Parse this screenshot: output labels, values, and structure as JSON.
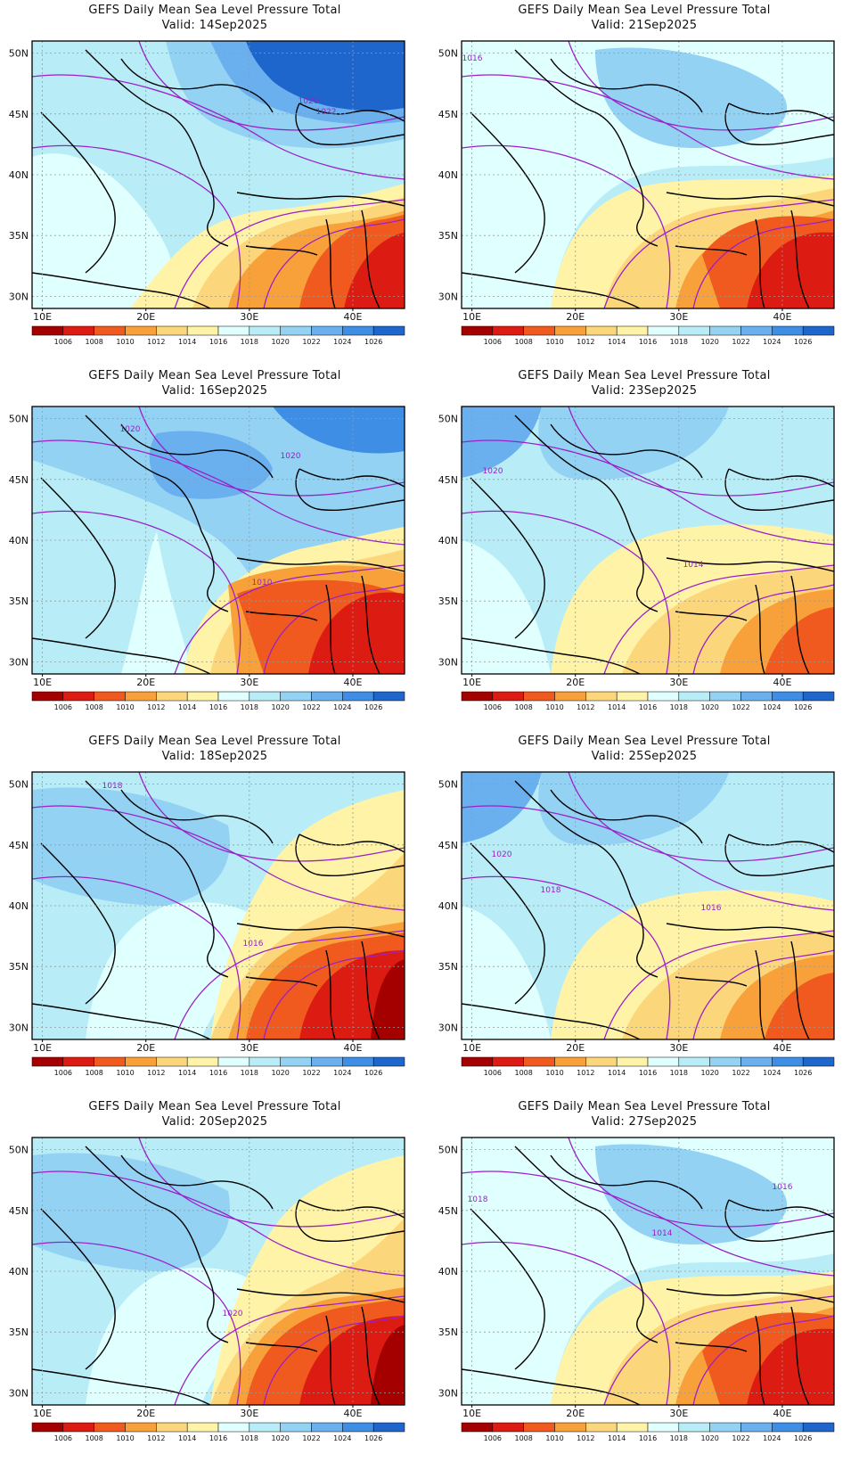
{
  "figure": {
    "title": "GEFS Daily Mean Sea Level Pressure Total"
  },
  "axes": {
    "lon_ticks": [
      "10E",
      "20E",
      "30E",
      "40E"
    ],
    "lat_ticks": [
      "50N",
      "45N",
      "40N",
      "35N",
      "30N"
    ]
  },
  "colorbar": {
    "levels": [
      "1006",
      "1008",
      "1010",
      "1012",
      "1014",
      "1016",
      "1018",
      "1020",
      "1022",
      "1024",
      "1026"
    ],
    "colors": [
      "#a50000",
      "#dc1c13",
      "#f05a1e",
      "#f8a03a",
      "#fcd67a",
      "#fff3a8",
      "#e0ffff",
      "#b8ecf7",
      "#94d2f4",
      "#6ab0ee",
      "#3f8ee6",
      "#1f66cc"
    ]
  },
  "panels": [
    {
      "valid": "Valid: 14Sep2025",
      "labels": [
        {
          "text": "1026"
        },
        {
          "text": "1022"
        }
      ],
      "theme": "highN"
    },
    {
      "valid": "Valid: 21Sep2025",
      "labels": [
        {
          "text": "1016"
        }
      ],
      "theme": "mild"
    },
    {
      "valid": "Valid: 16Sep2025",
      "labels": [
        {
          "text": "1020"
        },
        {
          "text": "1020"
        },
        {
          "text": "1010"
        }
      ],
      "theme": "highNE"
    },
    {
      "valid": "Valid: 23Sep2025",
      "labels": [
        {
          "text": "1020"
        },
        {
          "text": "1014"
        }
      ],
      "theme": "mildW"
    },
    {
      "valid": "Valid: 18Sep2025",
      "labels": [
        {
          "text": "1018"
        },
        {
          "text": "1016"
        }
      ],
      "theme": "lowE"
    },
    {
      "valid": "Valid: 25Sep2025",
      "labels": [
        {
          "text": "1020"
        },
        {
          "text": "1018"
        },
        {
          "text": "1016"
        }
      ],
      "theme": "mildW"
    },
    {
      "valid": "Valid: 20Sep2025",
      "labels": [
        {
          "text": "1020"
        }
      ],
      "theme": "lowE"
    },
    {
      "valid": "Valid: 27Sep2025",
      "labels": [
        {
          "text": "1018"
        },
        {
          "text": "1016"
        },
        {
          "text": "1014"
        }
      ],
      "theme": "mild"
    }
  ]
}
